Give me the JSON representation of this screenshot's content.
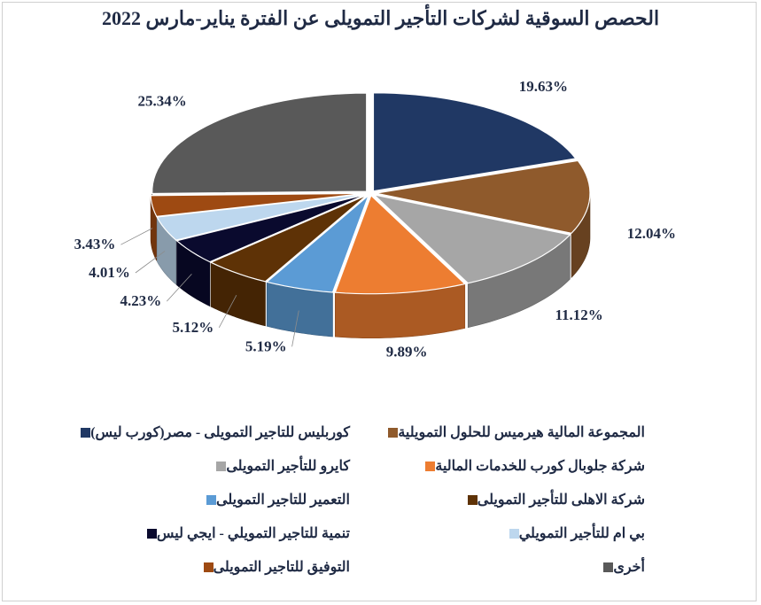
{
  "chart_data": {
    "type": "pie",
    "title": "الحصص السوقية لشركات التأجير التمويلى عن الفترة يناير-مارس 2022",
    "unit": "%",
    "categories": [
      "كوربليس للتاجير التمويلى - مصر(كورب ليس)",
      "المجموعة المالية هيرميس للحلول التمويلية",
      "كايرو للتأجير التمويلى",
      "شركة جلوبال كورب للخدمات المالية",
      "التعمير للتاجير التمويلى",
      "شركة الاهلى للتأجير التمويلى",
      "تنمية للتاجير التمويلي - ايجي ليس",
      "بي ام للتأجير التمويلي",
      "التوفيق للتاجير التمويلى",
      "أخرى"
    ],
    "values": [
      19.63,
      12.04,
      11.12,
      9.89,
      5.19,
      5.12,
      4.23,
      4.01,
      3.43,
      25.34
    ],
    "value_labels": [
      "19.63%",
      "12.04%",
      "11.12%",
      "9.89%",
      "5.19%",
      "5.12%",
      "4.23%",
      "4.01%",
      "3.43%",
      "25.34%"
    ],
    "colors": [
      "#203864",
      "#8f5a2c",
      "#a6a6a6",
      "#ed7d31",
      "#5b9bd5",
      "#5e3206",
      "#0a0a2e",
      "#bdd7ee",
      "#9e4a12",
      "#595959"
    ],
    "legend": {
      "placement": "bottom",
      "columns": 2
    },
    "style": "3d-exploded"
  }
}
